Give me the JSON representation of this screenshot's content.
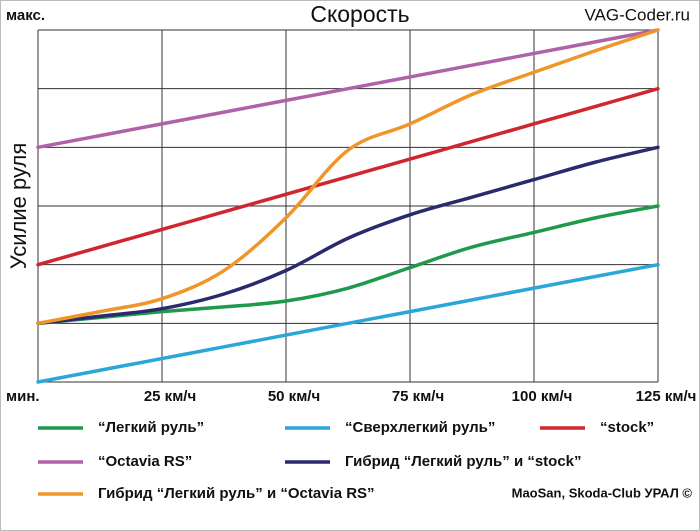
{
  "chart_data": {
    "type": "line",
    "title": "Скорость",
    "y_label": "Усилие руля",
    "watermark": "VAG-Coder.ru",
    "credit": "MaoSan, Skoda-Club УРАЛ ©",
    "x": [
      0,
      12.5,
      25,
      37.5,
      50,
      62.5,
      75,
      87.5,
      100,
      112.5,
      125
    ],
    "xlim": [
      0,
      125
    ],
    "xticks": [
      {
        "value": 25,
        "label": "25 км/ч"
      },
      {
        "value": 50,
        "label": "50 км/ч"
      },
      {
        "value": 75,
        "label": "75 км/ч"
      },
      {
        "value": 100,
        "label": "100 км/ч"
      },
      {
        "value": 125,
        "label": "125 км/ч"
      }
    ],
    "ylim": [
      0,
      6
    ],
    "yticks": [
      {
        "value": 0,
        "label": "мин."
      },
      {
        "value": 6,
        "label": "макс."
      }
    ],
    "ygrid": [
      1,
      2,
      3,
      4,
      5
    ],
    "grid": true,
    "series": [
      {
        "name": "“Легкий руль”",
        "color": "#1e9a4a",
        "values": [
          1,
          1.1,
          1.2,
          1.28,
          1.38,
          1.6,
          1.95,
          2.3,
          2.55,
          2.8,
          3
        ]
      },
      {
        "name": "“Сверхлегкий руль”",
        "color": "#2aa6d8",
        "values": [
          0,
          0.2,
          0.4,
          0.6,
          0.8,
          1,
          1.2,
          1.4,
          1.6,
          1.8,
          2
        ]
      },
      {
        "name": "“stock”",
        "color": "#d0262d",
        "values": [
          2,
          2.3,
          2.6,
          2.9,
          3.2,
          3.5,
          3.8,
          4.1,
          4.4,
          4.7,
          5
        ]
      },
      {
        "name": "“Octavia RS”",
        "color": "#b062a8",
        "values": [
          4,
          4.2,
          4.4,
          4.6,
          4.8,
          5,
          5.2,
          5.4,
          5.6,
          5.8,
          6
        ]
      },
      {
        "name": "Гибрид “Легкий руль” и “stock”",
        "color": "#2b2a6e",
        "values": [
          1,
          1.12,
          1.25,
          1.5,
          1.9,
          2.45,
          2.85,
          3.15,
          3.45,
          3.75,
          4
        ]
      },
      {
        "name": "Гибрид “Легкий руль” и “Octavia RS”",
        "color": "#f0952a",
        "values": [
          1,
          1.2,
          1.42,
          1.9,
          2.8,
          3.95,
          4.4,
          4.9,
          5.28,
          5.65,
          6
        ]
      }
    ]
  }
}
